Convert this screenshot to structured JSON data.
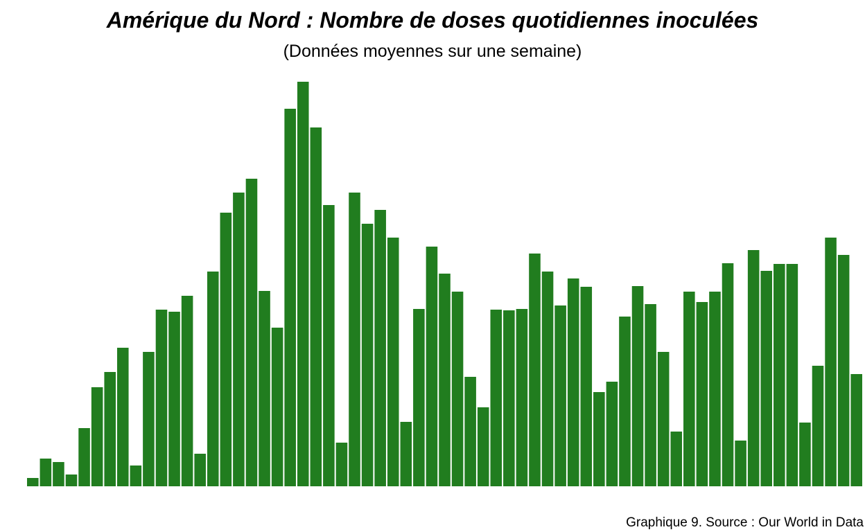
{
  "chart_data": {
    "type": "bar",
    "title": "Amérique du Nord : Nombre de doses quotidiennes inoculées",
    "subtitle": "(Données moyennes sur une semaine)",
    "xlabel": "",
    "ylabel": "",
    "axes_visible": false,
    "grid": false,
    "legend": "none",
    "bar_color": "#217d1f",
    "values": [
      12,
      40,
      35,
      17,
      84,
      143,
      165,
      200,
      30,
      194,
      255,
      252,
      275,
      47,
      310,
      395,
      424,
      444,
      282,
      229,
      545,
      584,
      518,
      406,
      63,
      424,
      379,
      399,
      359,
      93,
      256,
      346,
      307,
      281,
      158,
      114,
      255,
      254,
      256,
      336,
      310,
      261,
      300,
      288,
      136,
      151,
      245,
      289,
      263,
      194,
      79,
      281,
      266,
      281,
      322,
      66,
      341,
      311,
      321,
      321,
      92,
      174,
      359,
      334,
      162
    ]
  },
  "caption": "Graphique 9. Source : Our World in Data"
}
